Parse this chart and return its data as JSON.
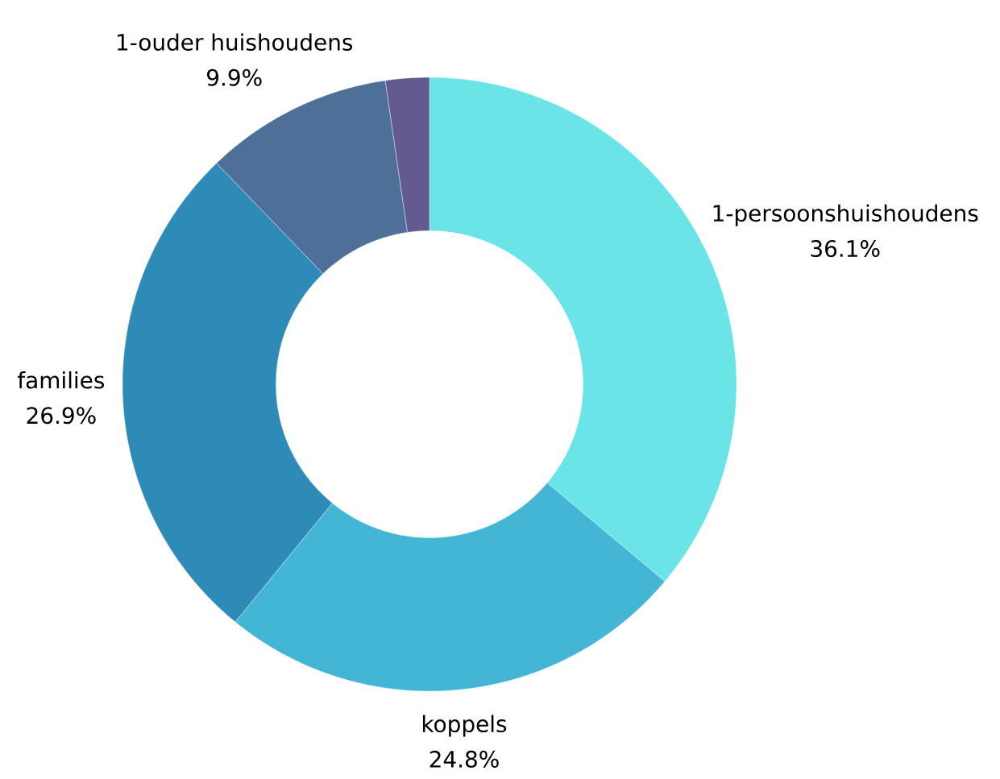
{
  "chart_data": {
    "type": "donut",
    "categories": [
      "1-persoonshuishoudens",
      "koppels",
      "families",
      "1-ouder huishoudens",
      null
    ],
    "values": [
      36.1,
      24.8,
      26.9,
      9.9,
      2.3
    ],
    "colors": [
      "#6ae4e6",
      "#43b6d5",
      "#2e8bb8",
      "#4e6f98",
      "#635b8f"
    ],
    "value_labels": [
      "36.1%",
      "24.8%",
      "26.9%",
      "9.9%",
      null
    ]
  }
}
